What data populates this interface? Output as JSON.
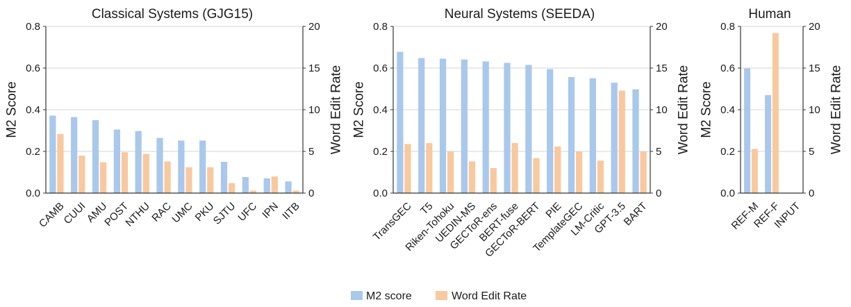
{
  "colors": {
    "m2": "#a9c8ec",
    "wer": "#f8c99f",
    "grid": "#d4d4d4",
    "axis": "#333333"
  },
  "legend": [
    {
      "label": "M2 score",
      "series": "m2"
    },
    {
      "label": "Word Edit Rate",
      "series": "wer"
    }
  ],
  "chart_data": [
    {
      "type": "bar",
      "title": "Classical Systems (GJG15)",
      "ylabel": "M2 Score",
      "y2label": "Word Edit Rate",
      "ylim": [
        0,
        0.8
      ],
      "y2lim": [
        0,
        20
      ],
      "yticks": [
        "0.0",
        "0.2",
        "0.4",
        "0.6",
        "0.8"
      ],
      "y2ticks": [
        "0",
        "5",
        "10",
        "15",
        "20"
      ],
      "grid": true,
      "categories": [
        "CAMB",
        "CUUI",
        "AMU",
        "POST",
        "NTHU",
        "RAC",
        "UMC",
        "PKU",
        "SJTU",
        "UFC",
        "IPN",
        "IITB"
      ],
      "series": [
        {
          "name": "M2 score",
          "axis": "left",
          "values": [
            0.372,
            0.365,
            0.35,
            0.305,
            0.298,
            0.265,
            0.252,
            0.252,
            0.15,
            0.077,
            0.071,
            0.056
          ]
        },
        {
          "name": "Word Edit Rate",
          "axis": "right",
          "values": [
            7.1,
            4.5,
            3.7,
            4.9,
            4.7,
            3.8,
            3.1,
            3.1,
            1.2,
            0.3,
            2.0,
            0.3
          ]
        }
      ]
    },
    {
      "type": "bar",
      "title": "Neural Systems (SEEDA)",
      "ylabel": "M2 Score",
      "y2label": "Word Edit Rate",
      "ylim": [
        0,
        0.8
      ],
      "y2lim": [
        0,
        20
      ],
      "yticks": [
        "0.0",
        "0.2",
        "0.4",
        "0.6",
        "0.8"
      ],
      "y2ticks": [
        "0",
        "5",
        "10",
        "15",
        "20"
      ],
      "grid": true,
      "categories": [
        "TransGEC",
        "T5",
        "Riken-Tohoku",
        "UEDIN-MS",
        "GECToR-ens",
        "BERT-fuse",
        "GECToR-BERT",
        "PIE",
        "TemplateGEC",
        "LM-Critic",
        "GPT-3.5",
        "BART"
      ],
      "series": [
        {
          "name": "M2 score",
          "axis": "left",
          "values": [
            0.678,
            0.648,
            0.645,
            0.641,
            0.632,
            0.625,
            0.615,
            0.595,
            0.557,
            0.551,
            0.53,
            0.498
          ]
        },
        {
          "name": "Word Edit Rate",
          "axis": "right",
          "values": [
            5.9,
            6.0,
            5.0,
            3.8,
            3.0,
            6.0,
            4.2,
            5.6,
            5.0,
            3.9,
            12.3,
            5.0
          ]
        }
      ]
    },
    {
      "type": "bar",
      "title": "Human",
      "ylabel": "M2 Score",
      "y2label": "Word Edit Rate",
      "ylim": [
        0,
        0.8
      ],
      "y2lim": [
        0,
        20
      ],
      "yticks": [
        "0.0",
        "0.2",
        "0.4",
        "0.6",
        "0.8"
      ],
      "y2ticks": [
        "0",
        "5",
        "10",
        "15",
        "20"
      ],
      "grid": true,
      "categories": [
        "REF-M",
        "REF-F",
        "INPUT"
      ],
      "series": [
        {
          "name": "M2 score",
          "axis": "left",
          "values": [
            0.598,
            0.47,
            0.0
          ]
        },
        {
          "name": "Word Edit Rate",
          "axis": "right",
          "values": [
            5.3,
            19.2,
            0.0
          ]
        }
      ]
    }
  ]
}
